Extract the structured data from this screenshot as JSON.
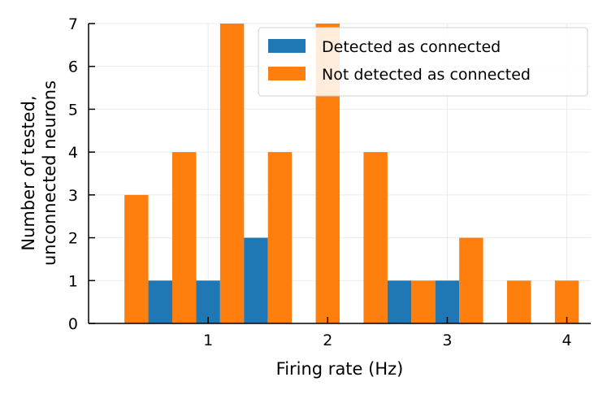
{
  "chart_data": {
    "type": "bar",
    "xlabel": "Firing rate (Hz)",
    "ylabel_lines": [
      "Number of tested,",
      "unconnected neurons"
    ],
    "xlim": [
      0.0,
      4.2
    ],
    "ylim": [
      0,
      7
    ],
    "xticks": [
      1,
      2,
      3,
      4
    ],
    "yticks": [
      0,
      1,
      2,
      3,
      4,
      5,
      6,
      7
    ],
    "grid": true,
    "legend_position": "top-right",
    "bin_width": 0.4,
    "bin_centers": [
      0.3,
      0.7,
      1.1,
      1.5,
      1.9,
      2.3,
      2.7,
      3.1,
      3.5,
      3.9
    ],
    "series": [
      {
        "name": "Detected as connected",
        "color": "#1f77b4",
        "values": [
          0,
          1,
          1,
          2,
          0,
          0,
          1,
          1,
          0,
          0
        ]
      },
      {
        "name": "Not detected as connected",
        "color": "#ff7f0e",
        "values": [
          3,
          4,
          7,
          4,
          7,
          4,
          1,
          2,
          1,
          1
        ]
      }
    ]
  }
}
